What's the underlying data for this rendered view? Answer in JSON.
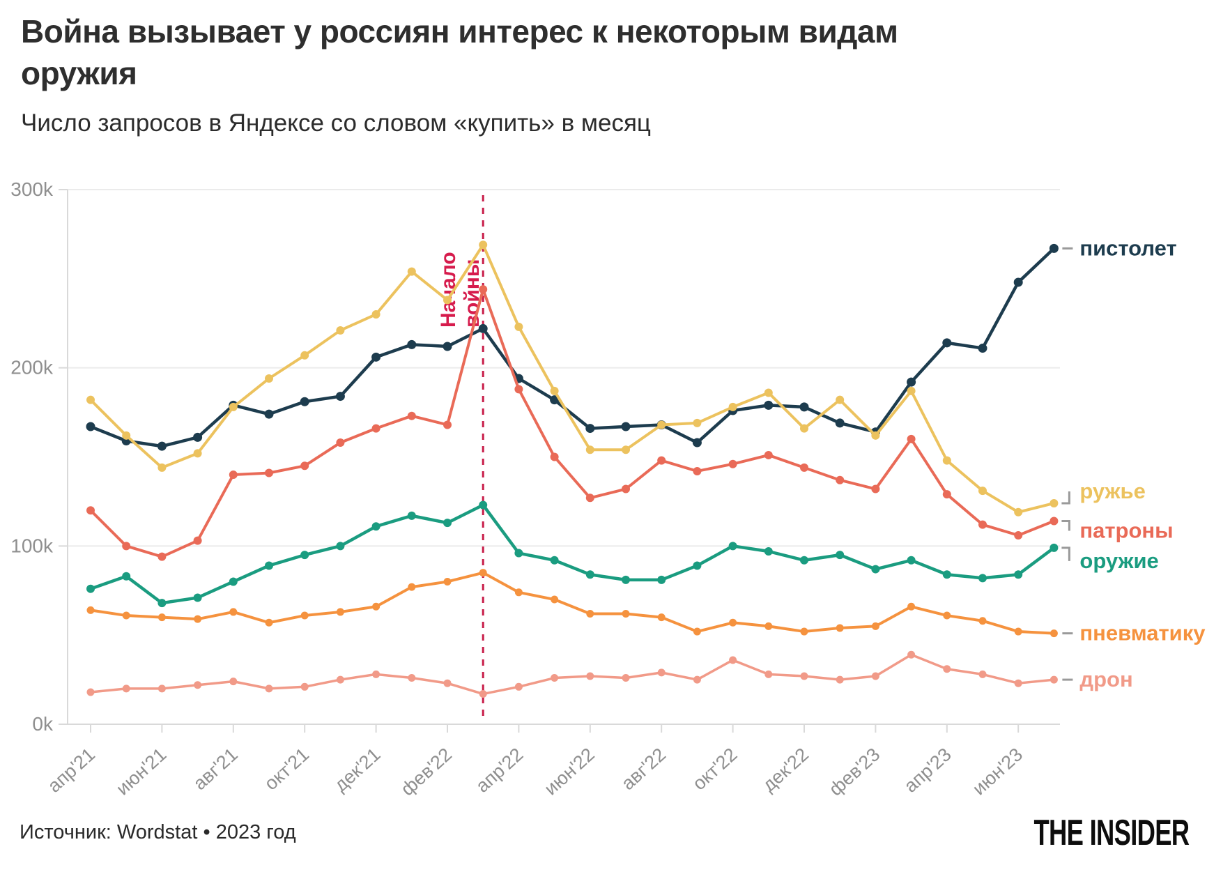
{
  "title_line1": "Война вызывает у россиян интерес к некоторым видам",
  "title_line2": "оружия",
  "subtitle": "Число запросов в Яндексе со словом «купить» в месяц",
  "annotation": {
    "line1": "Начало",
    "line2": "войны"
  },
  "footer": {
    "source": "Источник: Wordstat • 2023 год",
    "brand": "THE INSIDER"
  },
  "colors": {
    "pistol": "#1d3c4e",
    "rifle": "#ecc25e",
    "ammo": "#e96a57",
    "weapon": "#1a9c80",
    "airgun": "#f5923e",
    "drone": "#f19a88",
    "war_line": "#c81e4a",
    "annotation_text": "#d61b4c",
    "grid": "#ebebeb",
    "axis": "#d9d9d9",
    "tick_text": "#8f8f8f",
    "connector": "#9a9a9a"
  },
  "chart_data": {
    "type": "line",
    "title": "Война вызывает у россиян интерес к некоторым видам оружия",
    "subtitle": "Число запросов в Яндексе со словом «купить» в месяц",
    "unit": "thousands of queries per month",
    "ylim": [
      0,
      300
    ],
    "y_tick_labels": [
      "0k",
      "100k",
      "200k",
      "300k"
    ],
    "y_tick_values": [
      0,
      100,
      200,
      300
    ],
    "grid": "horizontal",
    "legend_position": "right",
    "war_line_index": 11,
    "war_line_label": "Начало войны",
    "x": [
      "апр'21",
      "май'21",
      "июн'21",
      "июл'21",
      "авг'21",
      "сен'21",
      "окт'21",
      "ноя'21",
      "дек'21",
      "янв'22",
      "фев'22",
      "мар'22",
      "апр'22",
      "май'22",
      "июн'22",
      "июл'22",
      "авг'22",
      "сен'22",
      "окт'22",
      "ноя'22",
      "дек'22",
      "янв'23",
      "фев'23",
      "мар'23",
      "апр'23",
      "май'23",
      "июн'23",
      "июл'23"
    ],
    "x_tick_labels": [
      "апр'21",
      "июн'21",
      "авг'21",
      "окт'21",
      "дек'21",
      "фев'22",
      "апр'22",
      "июн'22",
      "авг'22",
      "окт'22",
      "дек'22",
      "фев'23",
      "апр'23",
      "июн'23"
    ],
    "series": [
      {
        "name": "пистолет",
        "color_key": "pistol",
        "values": [
          167,
          159,
          156,
          161,
          179,
          174,
          181,
          184,
          206,
          213,
          212,
          222,
          194,
          182,
          166,
          167,
          168,
          158,
          176,
          179,
          178,
          169,
          164,
          192,
          214,
          211,
          248,
          267
        ]
      },
      {
        "name": "ружье",
        "color_key": "rifle",
        "values": [
          182,
          162,
          144,
          152,
          178,
          194,
          207,
          221,
          230,
          254,
          238,
          269,
          223,
          187,
          154,
          154,
          168,
          169,
          178,
          186,
          166,
          182,
          162,
          187,
          148,
          131,
          119,
          124
        ]
      },
      {
        "name": "патроны",
        "color_key": "ammo",
        "values": [
          120,
          100,
          94,
          103,
          140,
          141,
          145,
          158,
          166,
          173,
          168,
          244,
          188,
          150,
          127,
          132,
          148,
          142,
          146,
          151,
          144,
          137,
          132,
          160,
          129,
          112,
          106,
          114
        ]
      },
      {
        "name": "оружие",
        "color_key": "weapon",
        "values": [
          76,
          83,
          68,
          71,
          80,
          89,
          95,
          100,
          111,
          117,
          113,
          123,
          96,
          92,
          84,
          81,
          81,
          89,
          100,
          97,
          92,
          95,
          87,
          92,
          84,
          82,
          84,
          99
        ]
      },
      {
        "name": "пневматику",
        "color_key": "airgun",
        "values": [
          64,
          61,
          60,
          59,
          63,
          57,
          61,
          63,
          66,
          77,
          80,
          85,
          74,
          70,
          62,
          62,
          60,
          52,
          57,
          55,
          52,
          54,
          55,
          66,
          61,
          58,
          52,
          51
        ]
      },
      {
        "name": "дрон",
        "color_key": "drone",
        "values": [
          18,
          20,
          20,
          22,
          24,
          20,
          21,
          25,
          28,
          26,
          23,
          17,
          21,
          26,
          27,
          26,
          29,
          25,
          36,
          28,
          27,
          25,
          27,
          39,
          31,
          28,
          23,
          25
        ]
      }
    ]
  }
}
